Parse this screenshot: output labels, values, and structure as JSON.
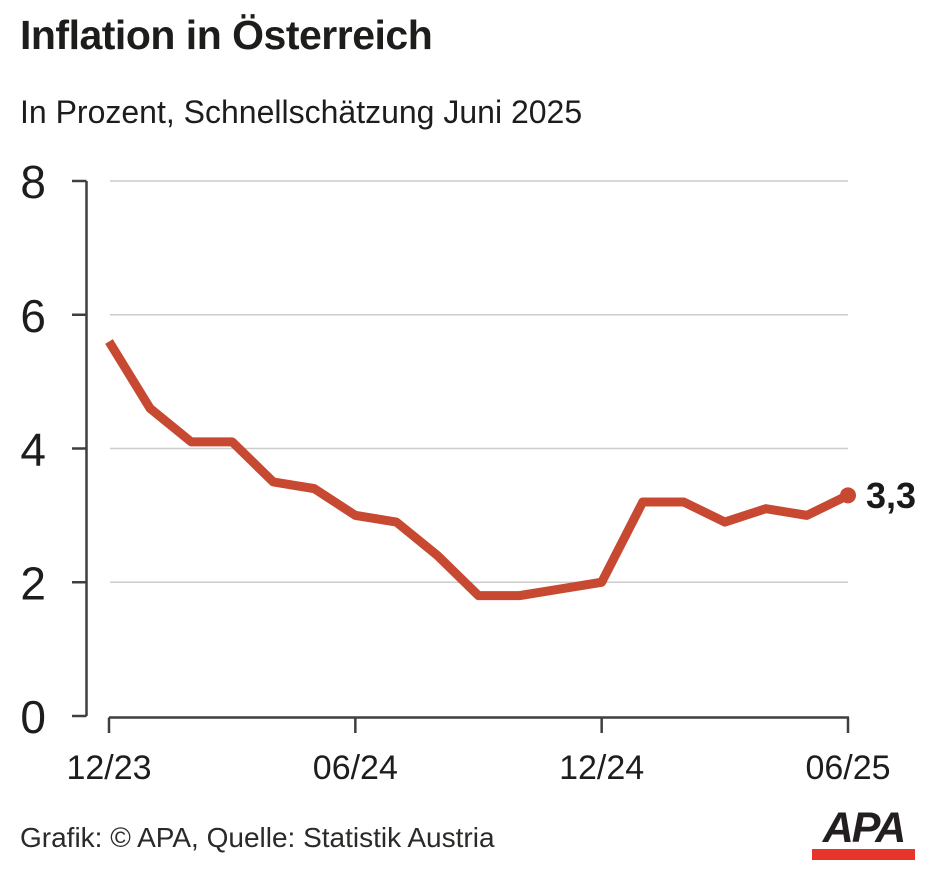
{
  "header": {
    "title": "Inflation in Österreich",
    "subtitle": "In Prozent, Schnellschätzung Juni 2025"
  },
  "chart_data": {
    "type": "line",
    "title": "Inflation in Österreich",
    "subtitle": "In Prozent, Schnellschätzung Juni 2025",
    "unit": "Prozent",
    "x": [
      "12/23",
      "01/24",
      "02/24",
      "03/24",
      "04/24",
      "05/24",
      "06/24",
      "07/24",
      "08/24",
      "09/24",
      "10/24",
      "11/24",
      "12/24",
      "01/25",
      "02/25",
      "03/25",
      "04/25",
      "05/25",
      "06/25"
    ],
    "values": [
      5.6,
      4.6,
      4.1,
      4.1,
      3.5,
      3.4,
      3.0,
      2.9,
      2.4,
      1.8,
      1.8,
      1.9,
      2.0,
      3.2,
      3.2,
      2.9,
      3.1,
      3.0,
      3.3
    ],
    "ylim": [
      0,
      8
    ],
    "yticks": [
      0,
      2,
      4,
      6,
      8
    ],
    "xticks": [
      {
        "index": 0,
        "label": "12/23"
      },
      {
        "index": 6,
        "label": "06/24"
      },
      {
        "index": 12,
        "label": "12/24"
      },
      {
        "index": 18,
        "label": "06/25"
      }
    ],
    "grid": "horizontal",
    "legend": "none",
    "end_dot": true,
    "last_value_label": "3,3",
    "colors": {
      "line": "#c84931",
      "axis": "#3f3f3f",
      "grid": "#cccccc",
      "text": "#1d1d1b",
      "end_label": "#1a1a1a"
    }
  },
  "footer": {
    "credit": "Grafik: © APA, Quelle: Statistik Austria",
    "logo_text": "APA",
    "logo_bar_color": "#e8352b"
  }
}
